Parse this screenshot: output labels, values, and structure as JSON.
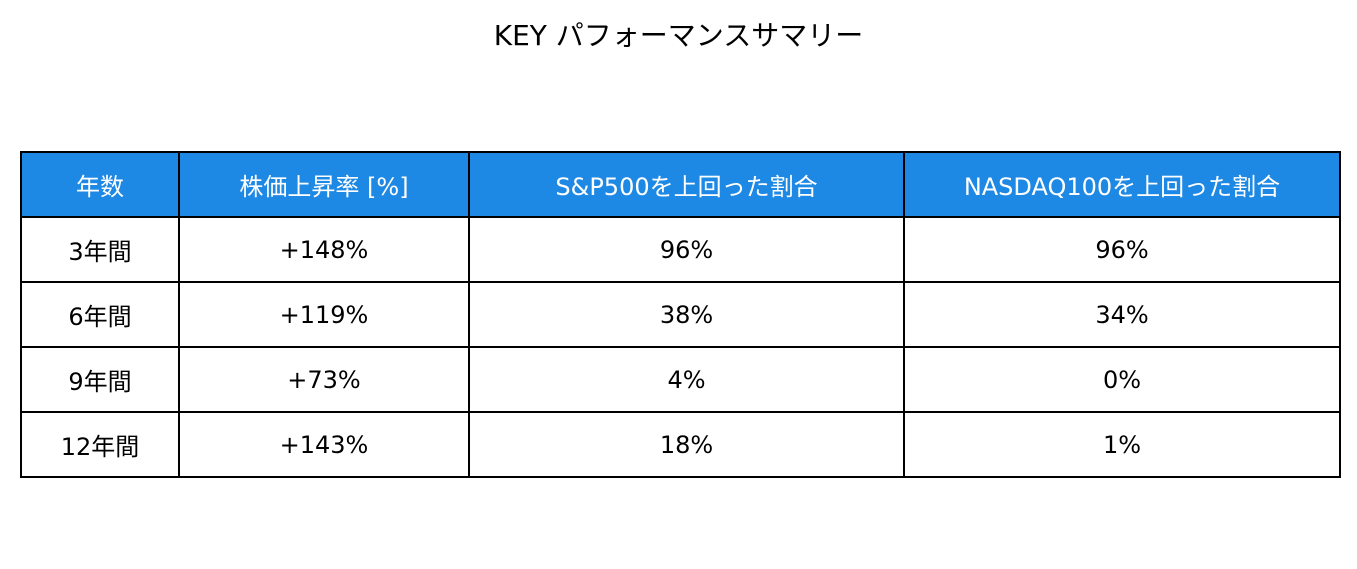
{
  "header": {
    "title": "KEY パフォーマンスサマリー"
  },
  "table": {
    "columns": [
      "年数",
      "株価上昇率 [%]",
      "S&P500を上回った割合",
      "NASDAQ100を上回った割合"
    ],
    "rows": [
      [
        "3年間",
        "+148%",
        "96%",
        "96%"
      ],
      [
        "6年間",
        "+119%",
        "38%",
        "34%"
      ],
      [
        "9年間",
        "+73%",
        "4%",
        "0%"
      ],
      [
        "12年間",
        "+143%",
        "18%",
        "1%"
      ]
    ]
  }
}
